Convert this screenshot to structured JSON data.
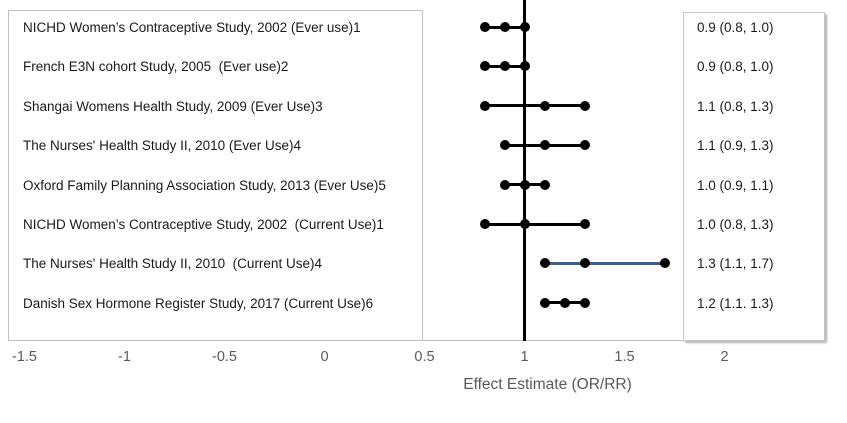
{
  "colors": {
    "marker": "#000000",
    "highlight_line": "#3c5f8f",
    "reference_line": "#000000",
    "axis_text": "#595959",
    "axis_line": "#bfbfbf",
    "box_border": "#bfbfbf",
    "label_text": "#1a1a1a"
  },
  "chart_data": {
    "type": "forest",
    "title": "",
    "xlabel": "Effect Estimate (OR/RR)",
    "ylabel": "",
    "xlim": [
      -1.6,
      2.6
    ],
    "grid": false,
    "reference_line_x": 1,
    "x_ticks": [
      {
        "label": "-1.5",
        "value": -1.5
      },
      {
        "label": "-1",
        "value": -1
      },
      {
        "label": "-0.5",
        "value": -0.5
      },
      {
        "label": "0",
        "value": 0
      },
      {
        "label": "0.5",
        "value": 0.5
      },
      {
        "label": "1",
        "value": 1
      },
      {
        "label": "1.5",
        "value": 1.5
      },
      {
        "label": "2",
        "value": 2
      }
    ],
    "studies": [
      {
        "label": "NICHD Women’s Contraceptive Study, 2002 (Ever use)1",
        "estimate": 0.9,
        "ci_lower": 0.8,
        "ci_upper": 1.0,
        "ci_text": "0.9 (0.8, 1.0)",
        "highlighted": false
      },
      {
        "label": "French E3N cohort Study, 2005  (Ever use)2",
        "estimate": 0.9,
        "ci_lower": 0.8,
        "ci_upper": 1.0,
        "ci_text": "0.9 (0.8, 1.0)",
        "highlighted": false
      },
      {
        "label": "Shangai Womens Health Study, 2009 (Ever Use)3",
        "estimate": 1.1,
        "ci_lower": 0.8,
        "ci_upper": 1.3,
        "ci_text": "1.1 (0.8, 1.3)",
        "highlighted": false
      },
      {
        "label": "The Nurses' Health Study II, 2010 (Ever Use)4",
        "estimate": 1.1,
        "ci_lower": 0.9,
        "ci_upper": 1.3,
        "ci_text": "1.1 (0.9, 1.3)",
        "highlighted": false
      },
      {
        "label": "Oxford Family Planning Association Study, 2013 (Ever Use)5",
        "estimate": 1.0,
        "ci_lower": 0.9,
        "ci_upper": 1.1,
        "ci_text": "1.0 (0.9, 1.1)",
        "highlighted": false
      },
      {
        "label": "NICHD Women’s Contraceptive Study, 2002  (Current Use)1",
        "estimate": 1.0,
        "ci_lower": 0.8,
        "ci_upper": 1.3,
        "ci_text": "1.0 (0.8, 1.3)",
        "highlighted": false
      },
      {
        "label": "The Nurses' Health Study II, 2010  (Current Use)4",
        "estimate": 1.3,
        "ci_lower": 1.1,
        "ci_upper": 1.7,
        "ci_text": "1.3 (1.1, 1.7)",
        "highlighted": true
      },
      {
        "label": "Danish Sex Hormone Register Study, 2017 (Current Use)6",
        "estimate": 1.2,
        "ci_lower": 1.1,
        "ci_upper": 1.3,
        "ci_text": "1.2 (1.1. 1.3)",
        "highlighted": false
      }
    ]
  }
}
